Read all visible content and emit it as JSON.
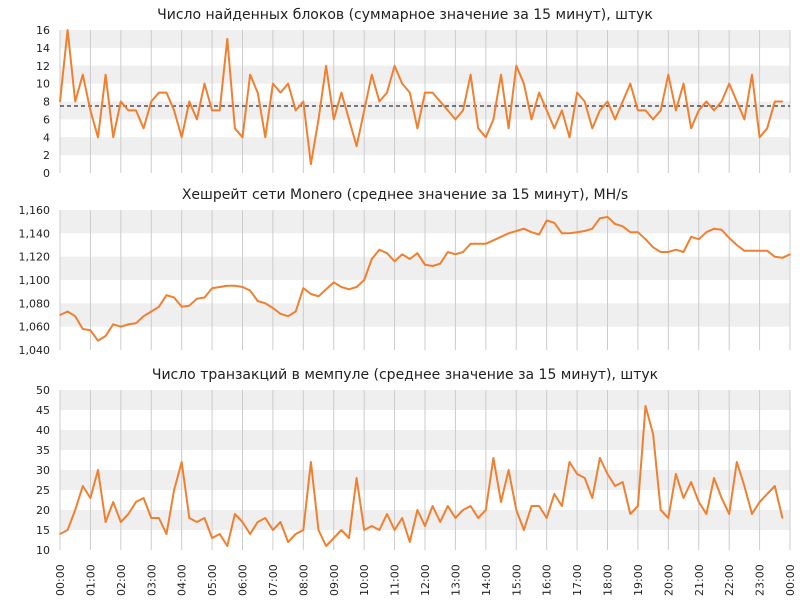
{
  "colors": {
    "series": "#f08030",
    "band": "#efefef",
    "grid": "#cccccc",
    "mean": "#000000"
  },
  "x_labels": [
    "00:00",
    "01:00",
    "02:00",
    "03:00",
    "04:00",
    "05:00",
    "06:00",
    "07:00",
    "08:00",
    "09:00",
    "10:00",
    "11:00",
    "12:00",
    "13:00",
    "14:00",
    "15:00",
    "16:00",
    "17:00",
    "18:00",
    "19:00",
    "20:00",
    "21:00",
    "22:00",
    "23:00",
    "00:00"
  ],
  "chart_data": [
    {
      "type": "line",
      "title": "Число найденных блоков (суммарное значение за 15 минут), штук",
      "ylim": [
        0,
        16
      ],
      "yticks": [
        "0",
        "2",
        "4",
        "6",
        "8",
        "10",
        "12",
        "14",
        "16"
      ],
      "mean_line": 7.5,
      "grid": true,
      "x_step_hours": 0.25,
      "values": [
        8,
        16,
        8,
        11,
        7,
        4,
        11,
        4,
        8,
        7,
        7,
        5,
        8,
        9,
        9,
        7,
        4,
        8,
        6,
        10,
        7,
        7,
        15,
        5,
        4,
        11,
        9,
        4,
        10,
        9,
        10,
        7,
        8,
        1,
        6,
        12,
        6,
        9,
        6,
        3,
        7,
        11,
        8,
        9,
        12,
        10,
        9,
        5,
        9,
        9,
        8,
        7,
        6,
        7,
        11,
        5,
        4,
        6,
        11,
        5,
        12,
        10,
        6,
        9,
        7,
        5,
        7,
        4,
        9,
        8,
        5,
        7,
        8,
        6,
        8,
        10,
        7,
        7,
        6,
        7,
        11,
        7,
        10,
        5,
        7,
        8,
        7,
        8,
        10,
        8,
        6,
        11,
        4,
        5,
        8,
        8
      ]
    },
    {
      "type": "line",
      "title": "Хешрейт сети Monero (среднее значение за 15 минут), MH/s",
      "ylim": [
        1040,
        1160
      ],
      "yticks": [
        "1,040",
        "1,060",
        "1,080",
        "1,100",
        "1,120",
        "1,140",
        "1,160"
      ],
      "grid": true,
      "x_step_hours": 0.25,
      "values": [
        1070,
        1073,
        1069,
        1058,
        1057,
        1048,
        1052,
        1062,
        1060,
        1062,
        1063,
        1069,
        1073,
        1077,
        1087,
        1085,
        1077,
        1078,
        1084,
        1085,
        1093,
        1094,
        1095,
        1095,
        1094,
        1091,
        1082,
        1080,
        1076,
        1071,
        1069,
        1073,
        1093,
        1088,
        1086,
        1092,
        1098,
        1094,
        1092,
        1094,
        1100,
        1118,
        1126,
        1123,
        1116,
        1122,
        1118,
        1123,
        1113,
        1112,
        1114,
        1124,
        1122,
        1124,
        1131,
        1131,
        1131,
        1134,
        1137,
        1140,
        1142,
        1144,
        1141,
        1139,
        1151,
        1149,
        1140,
        1140,
        1141,
        1142,
        1144,
        1153,
        1154,
        1148,
        1146,
        1141,
        1141,
        1135,
        1128,
        1124,
        1124,
        1126,
        1124,
        1137,
        1135,
        1141,
        1144,
        1143,
        1136,
        1130,
        1125,
        1125,
        1125,
        1125,
        1120,
        1119,
        1122
      ]
    },
    {
      "type": "line",
      "title": "Число транзакций в мемпуле (среднее значение за 15 минут), штук",
      "ylim": [
        10,
        50
      ],
      "yticks": [
        "10",
        "15",
        "20",
        "25",
        "30",
        "35",
        "40",
        "45",
        "50"
      ],
      "grid": true,
      "x_step_hours": 0.25,
      "values": [
        14,
        15,
        20,
        26,
        23,
        30,
        17,
        22,
        17,
        19,
        22,
        23,
        18,
        18,
        14,
        25,
        32,
        18,
        17,
        18,
        13,
        14,
        11,
        19,
        17,
        14,
        17,
        18,
        15,
        17,
        12,
        14,
        15,
        32,
        15,
        11,
        13,
        15,
        13,
        28,
        15,
        16,
        15,
        19,
        15,
        18,
        12,
        20,
        16,
        21,
        17,
        21,
        18,
        20,
        21,
        18,
        20,
        33,
        22,
        30,
        20,
        15,
        21,
        21,
        18,
        24,
        21,
        32,
        29,
        28,
        23,
        33,
        29,
        26,
        27,
        19,
        21,
        46,
        39,
        20,
        18,
        29,
        23,
        27,
        22,
        19,
        28,
        23,
        19,
        32,
        26,
        19,
        22,
        24,
        26,
        18
      ]
    }
  ]
}
